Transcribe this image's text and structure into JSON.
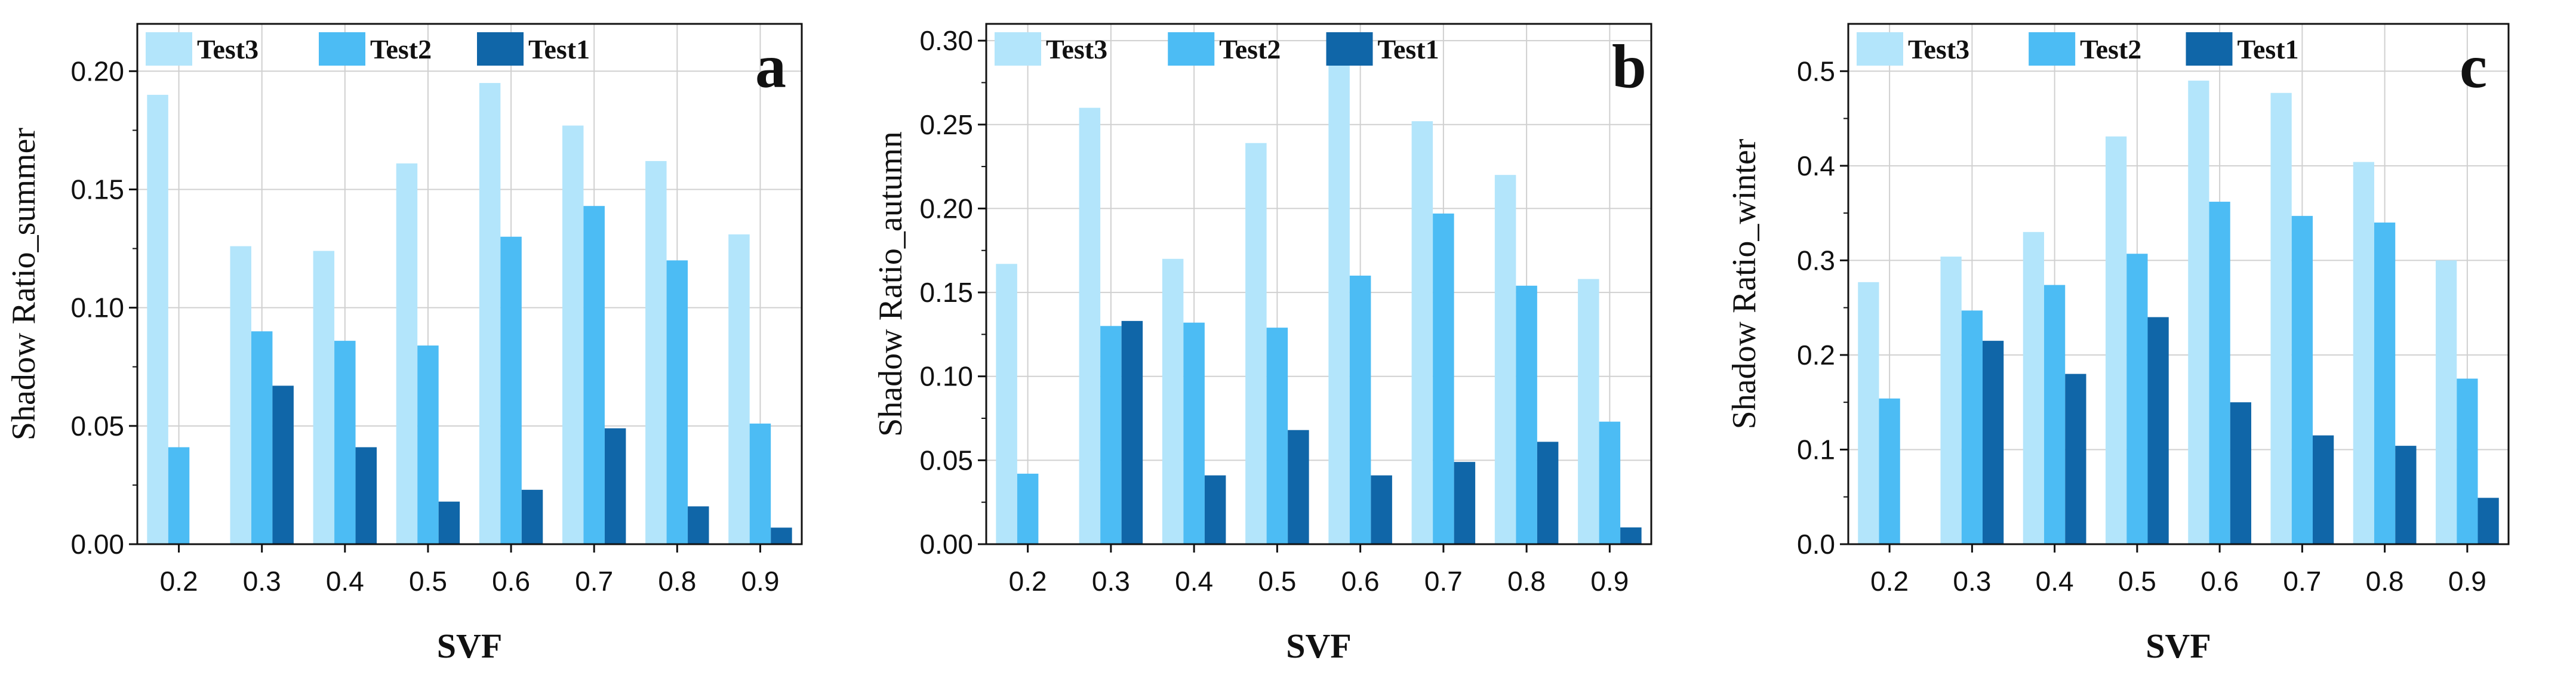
{
  "colors": {
    "Test3": "#b3e5fb",
    "Test2": "#4cbcf4",
    "Test1": "#1066a8",
    "grid": "#d0d0d0",
    "axis": "#111111"
  },
  "chart_data": [
    {
      "type": "bar",
      "panel_label": "a",
      "categories": [
        "0.2",
        "0.3",
        "0.4",
        "0.5",
        "0.6",
        "0.7",
        "0.8",
        "0.9"
      ],
      "xlabel": "SVF",
      "ylabel": "Shadow Ratio_summer",
      "ylim": [
        0,
        0.22
      ],
      "yticks": [
        "0.00",
        "0.05",
        "0.10",
        "0.15",
        "0.20"
      ],
      "ytick_values": [
        0,
        0.05,
        0.1,
        0.15,
        0.2
      ],
      "legend": "top",
      "grid": true,
      "series": [
        {
          "name": "Test3",
          "values": [
            0.19,
            0.126,
            0.124,
            0.161,
            0.195,
            0.177,
            0.162,
            0.131
          ]
        },
        {
          "name": "Test2",
          "values": [
            0.041,
            0.09,
            0.086,
            0.084,
            0.13,
            0.143,
            0.12,
            0.051
          ]
        },
        {
          "name": "Test1",
          "values": [
            0,
            0.067,
            0.041,
            0.018,
            0.023,
            0.049,
            0.016,
            0.007
          ]
        }
      ]
    },
    {
      "type": "bar",
      "panel_label": "b",
      "categories": [
        "0.2",
        "0.3",
        "0.4",
        "0.5",
        "0.6",
        "0.7",
        "0.8",
        "0.9"
      ],
      "xlabel": "SVF",
      "ylabel": "Shadow Ratio_autumn",
      "ylim": [
        0,
        0.31
      ],
      "yticks": [
        "0.00",
        "0.05",
        "0.10",
        "0.15",
        "0.20",
        "0.25",
        "0.30"
      ],
      "ytick_values": [
        0,
        0.05,
        0.1,
        0.15,
        0.2,
        0.25,
        0.3
      ],
      "legend": "top",
      "grid": true,
      "series": [
        {
          "name": "Test3",
          "values": [
            0.167,
            0.26,
            0.17,
            0.239,
            0.287,
            0.252,
            0.22,
            0.158
          ]
        },
        {
          "name": "Test2",
          "values": [
            0.042,
            0.13,
            0.132,
            0.129,
            0.16,
            0.197,
            0.154,
            0.073
          ]
        },
        {
          "name": "Test1",
          "values": [
            0,
            0.133,
            0.041,
            0.068,
            0.041,
            0.049,
            0.061,
            0.01
          ]
        }
      ]
    },
    {
      "type": "bar",
      "panel_label": "c",
      "categories": [
        "0.2",
        "0.3",
        "0.4",
        "0.5",
        "0.6",
        "0.7",
        "0.8",
        "0.9"
      ],
      "xlabel": "SVF",
      "ylabel": "Shadow Ratio_winter",
      "ylim": [
        0,
        0.55
      ],
      "yticks": [
        "0.0",
        "0.1",
        "0.2",
        "0.3",
        "0.4",
        "0.5"
      ],
      "ytick_values": [
        0,
        0.1,
        0.2,
        0.3,
        0.4,
        0.5
      ],
      "legend": "top",
      "grid": true,
      "series": [
        {
          "name": "Test3",
          "values": [
            0.277,
            0.304,
            0.33,
            0.431,
            0.49,
            0.477,
            0.404,
            0.3
          ]
        },
        {
          "name": "Test2",
          "values": [
            0.154,
            0.247,
            0.274,
            0.307,
            0.362,
            0.347,
            0.34,
            0.175
          ]
        },
        {
          "name": "Test1",
          "values": [
            0,
            0.215,
            0.18,
            0.24,
            0.15,
            0.115,
            0.104,
            0.049
          ]
        }
      ]
    }
  ]
}
